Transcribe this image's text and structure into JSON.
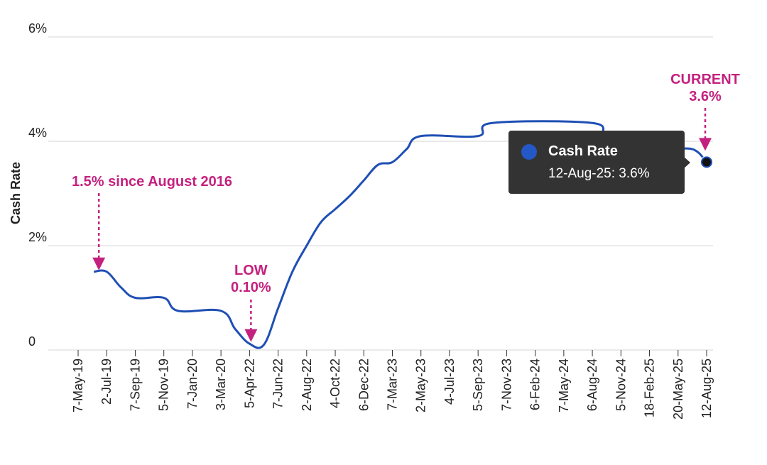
{
  "chart_data": {
    "type": "line",
    "ylabel": "Cash Rate",
    "xlabel": "",
    "ylim": [
      0,
      6
    ],
    "yticks": [
      {
        "value": 0,
        "label": "0"
      },
      {
        "value": 2,
        "label": "2%"
      },
      {
        "value": 4,
        "label": "4%"
      },
      {
        "value": 6,
        "label": "6%"
      }
    ],
    "categories": [
      "7-May-19",
      "2-Jul-19",
      "7-Sep-19",
      "5-Nov-19",
      "7-Jan-20",
      "3-Mar-20",
      "5-Apr-22",
      "7-Jun-22",
      "2-Aug-22",
      "4-Oct-22",
      "6-Dec-22",
      "7-Mar-23",
      "2-May-23",
      "4-Jul-23",
      "5-Sep-23",
      "7-Nov-23",
      "6-Feb-24",
      "7-May-24",
      "6-Aug-24",
      "5-Nov-24",
      "18-Feb-25",
      "20-May-25",
      "12-Aug-25"
    ],
    "grid": true,
    "series": [
      {
        "name": "Cash Rate",
        "color": "#1f4fb4",
        "points": [
          [
            0.55,
            1.5
          ],
          [
            1.0,
            1.5
          ],
          [
            1.5,
            1.2
          ],
          [
            2.0,
            1.0
          ],
          [
            3.0,
            1.0
          ],
          [
            3.5,
            0.75
          ],
          [
            5.0,
            0.75
          ],
          [
            5.5,
            0.4
          ],
          [
            6.0,
            0.12
          ],
          [
            6.5,
            0.1
          ],
          [
            7.0,
            0.8
          ],
          [
            7.5,
            1.5
          ],
          [
            8.0,
            2.0
          ],
          [
            8.5,
            2.45
          ],
          [
            9.0,
            2.7
          ],
          [
            9.5,
            2.95
          ],
          [
            10.0,
            3.25
          ],
          [
            10.5,
            3.55
          ],
          [
            11.0,
            3.6
          ],
          [
            11.5,
            3.85
          ],
          [
            12.0,
            4.1
          ],
          [
            14.0,
            4.1
          ],
          [
            14.5,
            4.35
          ],
          [
            18.0,
            4.35
          ],
          [
            18.5,
            4.1
          ],
          [
            20.0,
            4.1
          ],
          [
            20.5,
            3.85
          ],
          [
            21.5,
            3.85
          ],
          [
            22.0,
            3.6
          ]
        ]
      }
    ],
    "annotations": [
      {
        "text": "1.5% since August 2016",
        "color": "#c4217f",
        "x": 0.8,
        "y": 1.5
      },
      {
        "text_lines": [
          "LOW",
          "0.10%"
        ],
        "color": "#c4217f",
        "x": 6.0,
        "y": 0.1
      },
      {
        "text_lines": [
          "CURRENT",
          "3.6%"
        ],
        "color": "#c4217f",
        "x": 22.0,
        "y": 3.6
      }
    ],
    "tooltip": {
      "series_name": "Cash Rate",
      "value_text": "12-Aug-25: 3.6%",
      "x": 22.0,
      "y": 3.6,
      "dot_color": "#2458c6"
    }
  }
}
